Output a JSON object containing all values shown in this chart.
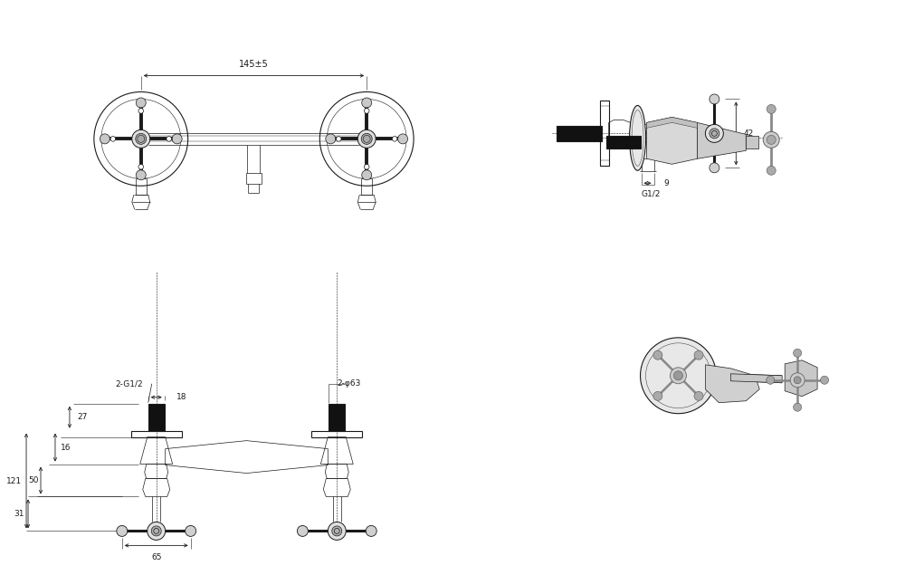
{
  "bg_color": "#ffffff",
  "line_color": "#1a1a1a",
  "dim_color": "#1a1a1a",
  "figsize": [
    10.0,
    6.35
  ],
  "dpi": 100,
  "dimensions": {
    "top_width": "145±5",
    "front_pipe_label": "2-G1/2",
    "front_dia_label": "2-φ63",
    "dim_27": "27",
    "dim_16": "16",
    "dim_50": "50",
    "dim_121": "121",
    "dim_31": "31",
    "dim_65": "65",
    "dim_18": "18",
    "dim_42": "42",
    "dim_9": "9",
    "side_g": "G1/2"
  }
}
